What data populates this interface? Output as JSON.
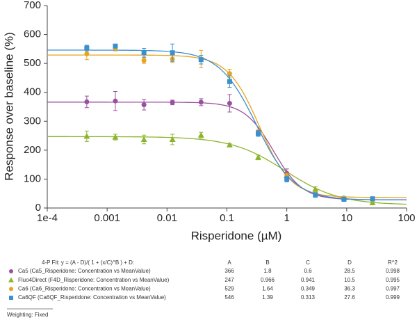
{
  "chart_data": {
    "type": "scatter",
    "x_label": "Risperidone (µM)",
    "y_label": "Response over baseline (%)",
    "xlog": true,
    "xlim": [
      0.0001,
      100
    ],
    "xticks": [
      {
        "value": 0.0001,
        "label": "1e-4"
      },
      0.001,
      0.01,
      0.1,
      1,
      10,
      100
    ],
    "ylim": [
      0,
      700
    ],
    "yticks": [
      0,
      100,
      200,
      300,
      400,
      500,
      600,
      700
    ],
    "x": [
      0.000457,
      0.00137,
      0.00412,
      0.0123,
      0.037,
      0.111,
      0.333,
      1,
      3,
      9,
      27
    ],
    "fit_header": "4-P Fit: y = (A - D)/( 1 + (x/C)^B ) + D:",
    "fit_columns": [
      "A",
      "B",
      "C",
      "D",
      "R^2"
    ],
    "series": [
      {
        "name": "Ca5 (Ca5_Risperidone: Concentration vs MeanValue)",
        "color": "#9b4f9f",
        "marker": "circle",
        "values": [
          367,
          370,
          357,
          365,
          366,
          362,
          258,
          120,
          50,
          30,
          30
        ],
        "errors": [
          20,
          33,
          18,
          8,
          12,
          30,
          10,
          15,
          10,
          5,
          5
        ],
        "fit": [
          366,
          1.8,
          0.6,
          28.5,
          0.998
        ]
      },
      {
        "name": "Fluo4Direct (F4D_Risperidone: Concentration vs MeanValue)",
        "color": "#8db42e",
        "marker": "triangle",
        "values": [
          248,
          245,
          237,
          237,
          252,
          218,
          175,
          112,
          65,
          35,
          18
        ],
        "errors": [
          18,
          10,
          15,
          18,
          10,
          5,
          8,
          8,
          8,
          5,
          5
        ],
        "fit": [
          247,
          0.966,
          0.941,
          10.5,
          0.995
        ]
      },
      {
        "name": "Ca6 (Ca6_Risperidone: Concentration vs MeanValue)",
        "color": "#e8a41c",
        "marker": "circle",
        "values": [
          533,
          553,
          510,
          515,
          515,
          465,
          262,
          110,
          48,
          33,
          30
        ],
        "errors": [
          20,
          10,
          10,
          12,
          30,
          15,
          10,
          10,
          8,
          5,
          5
        ],
        "fit": [
          529,
          1.64,
          0.349,
          36.3,
          0.997
        ]
      },
      {
        "name": "Ca6QF (Ca6QF_Risperidone: Concentration vs MeanValue)",
        "color": "#3b8fce",
        "marker": "square",
        "values": [
          553,
          560,
          537,
          537,
          513,
          437,
          258,
          100,
          45,
          30,
          32
        ],
        "errors": [
          10,
          5,
          15,
          30,
          15,
          20,
          10,
          10,
          8,
          5,
          5
        ],
        "fit": [
          546,
          1.39,
          0.313,
          27.6,
          0.999
        ]
      }
    ],
    "weighting_note": "Weighting: Fixed"
  }
}
